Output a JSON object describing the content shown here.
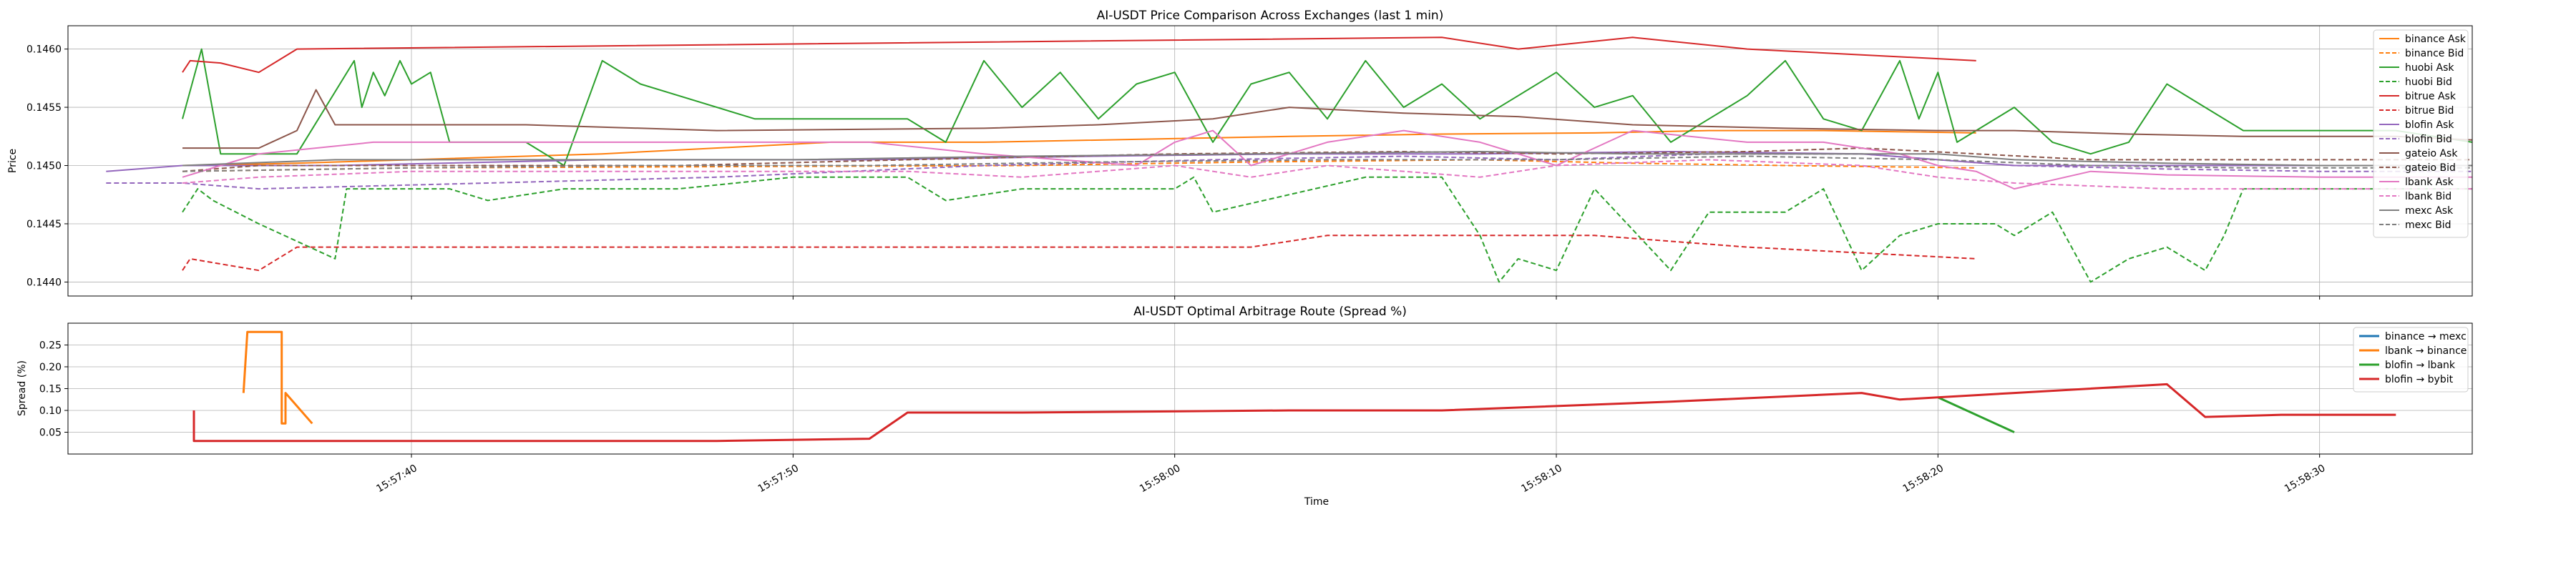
{
  "chart_data": [
    {
      "type": "line",
      "title": "AI-USDT Price Comparison Across Exchanges (last 1 min)",
      "xlabel": "",
      "ylabel": "Price",
      "ylim": [
        0.14388,
        0.1462
      ],
      "xlim": [
        "15:57:31",
        "15:58:34"
      ],
      "y_ticks": [
        "0.1440",
        "0.1445",
        "0.1450",
        "0.1455",
        "0.1460"
      ],
      "grid": true,
      "legend_position": "top-right",
      "series": [
        {
          "name": "binance Ask",
          "color": "#ff7f0e",
          "dash": "solid",
          "x": [
            "15:57:34",
            "15:57:37",
            "15:57:45",
            "15:57:51",
            "15:57:55",
            "15:58:03",
            "15:58:07",
            "15:58:11",
            "15:58:14",
            "15:58:17",
            "15:58:21"
          ],
          "y": [
            0.145,
            0.14502,
            0.1451,
            0.1452,
            0.1452,
            0.14525,
            0.14527,
            0.14528,
            0.1453,
            0.1453,
            0.14528
          ]
        },
        {
          "name": "binance Bid",
          "color": "#ff7f0e",
          "dash": "dashed",
          "x": [
            "15:57:34",
            "15:57:40",
            "15:57:48",
            "15:57:56",
            "15:58:02",
            "15:58:08",
            "15:58:12",
            "15:58:16",
            "15:58:21"
          ],
          "y": [
            0.14495,
            0.14498,
            0.14499,
            0.145,
            0.14503,
            0.14505,
            0.14502,
            0.145,
            0.14498
          ]
        },
        {
          "name": "huobi Ask",
          "color": "#2ca02c",
          "dash": "solid",
          "x": [
            "15:57:34",
            "15:57:34.5",
            "15:57:35",
            "15:57:37",
            "15:57:38.5",
            "15:57:38.7",
            "15:57:39",
            "15:57:39.3",
            "15:57:39.7",
            "15:57:40",
            "15:57:40.5",
            "15:57:41",
            "15:57:43",
            "15:57:44",
            "15:57:45",
            "15:57:46",
            "15:57:49",
            "15:57:50",
            "15:57:53",
            "15:57:54",
            "15:57:55",
            "15:57:56",
            "15:57:57",
            "15:57:58",
            "15:57:59",
            "15:58:00",
            "15:58:01",
            "15:58:02",
            "15:58:03",
            "15:58:04",
            "15:58:05",
            "15:58:06",
            "15:58:07",
            "15:58:08",
            "15:58:09",
            "15:58:10",
            "15:58:11",
            "15:58:12",
            "15:58:13",
            "15:58:14",
            "15:58:15",
            "15:58:16",
            "15:58:17",
            "15:58:18",
            "15:58:19",
            "15:58:19.5",
            "15:58:20",
            "15:58:20.5",
            "15:58:21",
            "15:58:22",
            "15:58:23",
            "15:58:24",
            "15:58:25",
            "15:58:26",
            "15:58:27",
            "15:58:28",
            "15:58:30",
            "15:58:32",
            "15:58:34"
          ],
          "y": [
            0.1454,
            0.146,
            0.1451,
            0.1451,
            0.1459,
            0.1455,
            0.1458,
            0.1456,
            0.1459,
            0.1457,
            0.1458,
            0.1452,
            0.1452,
            0.145,
            0.1459,
            0.1457,
            0.1454,
            0.1454,
            0.1454,
            0.1452,
            0.1459,
            0.1455,
            0.1458,
            0.1454,
            0.1457,
            0.1458,
            0.1452,
            0.1457,
            0.1458,
            0.1454,
            0.1459,
            0.1455,
            0.1457,
            0.1454,
            0.1456,
            0.1458,
            0.1455,
            0.1456,
            0.1452,
            0.1454,
            0.1456,
            0.1459,
            0.1454,
            0.1453,
            0.1459,
            0.1454,
            0.1458,
            0.1452,
            0.1453,
            0.1455,
            0.1452,
            0.1451,
            0.1452,
            0.1457,
            0.1455,
            0.1453,
            0.1453,
            0.1453,
            0.1452
          ]
        },
        {
          "name": "huobi Bid",
          "color": "#2ca02c",
          "dash": "dashed",
          "x": [
            "15:57:34",
            "15:57:34.4",
            "15:57:34.8",
            "15:57:36",
            "15:57:38",
            "15:57:38.3",
            "15:57:41",
            "15:57:42",
            "15:57:44",
            "15:57:47",
            "15:57:50",
            "15:57:53",
            "15:57:54",
            "15:57:56",
            "15:58:00",
            "15:58:00.5",
            "15:58:01",
            "15:58:05",
            "15:58:07",
            "15:58:08",
            "15:58:08.5",
            "15:58:09",
            "15:58:10",
            "15:58:11",
            "15:58:13",
            "15:58:14",
            "15:58:15",
            "15:58:16",
            "15:58:17",
            "15:58:18",
            "15:58:19",
            "15:58:20",
            "15:58:21",
            "15:58:21.5",
            "15:58:22",
            "15:58:23",
            "15:58:24",
            "15:58:25",
            "15:58:26",
            "15:58:27",
            "15:58:27.5",
            "15:58:28",
            "15:58:30",
            "15:58:34"
          ],
          "y": [
            0.1446,
            0.1448,
            0.1447,
            0.1445,
            0.1442,
            0.1448,
            0.1448,
            0.1447,
            0.1448,
            0.1448,
            0.1449,
            0.1449,
            0.1447,
            0.1448,
            0.1448,
            0.1449,
            0.1446,
            0.1449,
            0.1449,
            0.1444,
            0.144,
            0.1442,
            0.1441,
            0.1448,
            0.1441,
            0.1446,
            0.1446,
            0.1446,
            0.1448,
            0.1441,
            0.1444,
            0.1445,
            0.1445,
            0.1445,
            0.1444,
            0.1446,
            0.144,
            0.1442,
            0.1443,
            0.1441,
            0.1444,
            0.1448,
            0.1448,
            0.1448
          ]
        },
        {
          "name": "bitrue Ask",
          "color": "#d62728",
          "dash": "solid",
          "x": [
            "15:57:34",
            "15:57:34.2",
            "15:57:35",
            "15:57:36",
            "15:57:37",
            "15:58:07",
            "15:58:09",
            "15:58:12",
            "15:58:15",
            "15:58:18",
            "15:58:21"
          ],
          "y": [
            0.1458,
            0.1459,
            0.14588,
            0.1458,
            0.146,
            0.1461,
            0.146,
            0.1461,
            0.146,
            0.14595,
            0.1459
          ]
        },
        {
          "name": "bitrue Bid",
          "color": "#d62728",
          "dash": "dashed",
          "x": [
            "15:57:34",
            "15:57:34.2",
            "15:57:36",
            "15:57:37",
            "15:58:02",
            "15:58:04",
            "15:58:08",
            "15:58:11",
            "15:58:15",
            "15:58:21"
          ],
          "y": [
            0.1441,
            0.1442,
            0.1441,
            0.1443,
            0.1443,
            0.1444,
            0.1444,
            0.1444,
            0.1443,
            0.1442
          ]
        },
        {
          "name": "blofin Ask",
          "color": "#9467bd",
          "dash": "solid",
          "x": [
            "15:57:32",
            "15:57:34",
            "15:57:38",
            "15:57:45",
            "15:57:52",
            "15:57:58",
            "15:58:03",
            "15:58:08",
            "15:58:13",
            "15:58:18",
            "15:58:22",
            "15:58:26",
            "15:58:30",
            "15:58:34"
          ],
          "y": [
            0.14495,
            0.145,
            0.145,
            0.14505,
            0.14505,
            0.14508,
            0.1451,
            0.1451,
            0.14512,
            0.1451,
            0.145,
            0.145,
            0.145,
            0.145
          ]
        },
        {
          "name": "blofin Bid",
          "color": "#9467bd",
          "dash": "dashed",
          "x": [
            "15:57:32",
            "15:57:34",
            "15:57:36",
            "15:57:42",
            "15:57:48",
            "15:57:55",
            "15:58:01",
            "15:58:06",
            "15:58:10",
            "15:58:14",
            "15:58:18",
            "15:58:22",
            "15:58:26",
            "15:58:30",
            "15:58:34"
          ],
          "y": [
            0.14485,
            0.14485,
            0.1448,
            0.14485,
            0.1449,
            0.145,
            0.14505,
            0.14508,
            0.14505,
            0.1451,
            0.1451,
            0.145,
            0.14497,
            0.14495,
            0.14495
          ]
        },
        {
          "name": "gateio Ask",
          "color": "#8c564b",
          "dash": "solid",
          "x": [
            "15:57:34",
            "15:57:36",
            "15:57:37",
            "15:57:37.5",
            "15:57:38",
            "15:57:43",
            "15:57:48",
            "15:57:55",
            "15:57:58",
            "15:58:01",
            "15:58:03",
            "15:58:06",
            "15:58:09",
            "15:58:12",
            "15:58:16",
            "15:58:20",
            "15:58:22",
            "15:58:25",
            "15:58:28",
            "15:58:30",
            "15:58:32",
            "15:58:34"
          ],
          "y": [
            0.14515,
            0.14515,
            0.1453,
            0.14565,
            0.14535,
            0.14535,
            0.1453,
            0.14532,
            0.14535,
            0.1454,
            0.1455,
            0.14545,
            0.14542,
            0.14535,
            0.14532,
            0.1453,
            0.1453,
            0.14527,
            0.14525,
            0.14525,
            0.14525,
            0.14522
          ]
        },
        {
          "name": "gateio Bid",
          "color": "#8c564b",
          "dash": "dashed",
          "x": [
            "15:57:34",
            "15:57:36",
            "15:57:40",
            "15:57:47",
            "15:57:53",
            "15:58:00",
            "15:58:06",
            "15:58:10",
            "15:58:15",
            "15:58:18",
            "15:58:21",
            "15:58:24",
            "15:58:28",
            "15:58:32",
            "15:58:34"
          ],
          "y": [
            0.14495,
            0.145,
            0.145,
            0.145,
            0.14505,
            0.1451,
            0.14512,
            0.1451,
            0.14512,
            0.14515,
            0.1451,
            0.14505,
            0.14505,
            0.14505,
            0.14505
          ]
        },
        {
          "name": "lbank Ask",
          "color": "#e377c2",
          "dash": "solid",
          "x": [
            "15:57:34",
            "15:57:35",
            "15:57:36",
            "15:57:39",
            "15:57:45",
            "15:57:52",
            "15:57:55",
            "15:57:59",
            "15:58:00",
            "15:58:01",
            "15:58:02",
            "15:58:04",
            "15:58:06",
            "15:58:08",
            "15:58:10",
            "15:58:12",
            "15:58:15",
            "15:58:17",
            "15:58:19",
            "15:58:20",
            "15:58:21",
            "15:58:22",
            "15:58:24",
            "15:58:26",
            "15:58:30",
            "15:58:34"
          ],
          "y": [
            0.1449,
            0.145,
            0.1451,
            0.1452,
            0.1452,
            0.1452,
            0.1451,
            0.145,
            0.1452,
            0.1453,
            0.145,
            0.1452,
            0.1453,
            0.1452,
            0.145,
            0.1453,
            0.1452,
            0.1452,
            0.1451,
            0.145,
            0.14495,
            0.1448,
            0.14495,
            0.14492,
            0.1449,
            0.1449
          ]
        },
        {
          "name": "lbank Bid",
          "color": "#e377c2",
          "dash": "dashed",
          "x": [
            "15:57:34",
            "15:57:36",
            "15:57:40",
            "15:57:46",
            "15:57:53",
            "15:57:56",
            "15:58:00",
            "15:58:02",
            "15:58:04",
            "15:58:08",
            "15:58:10",
            "15:58:14",
            "15:58:18",
            "15:58:20",
            "15:58:22",
            "15:58:26",
            "15:58:30",
            "15:58:34"
          ],
          "y": [
            0.14485,
            0.1449,
            0.14495,
            0.14495,
            0.14495,
            0.1449,
            0.145,
            0.1449,
            0.145,
            0.1449,
            0.145,
            0.14505,
            0.145,
            0.1449,
            0.14485,
            0.1448,
            0.1448,
            0.1448
          ]
        },
        {
          "name": "mexc Ask",
          "color": "#7f7f7f",
          "dash": "solid",
          "x": [
            "15:57:34",
            "15:57:38",
            "15:57:44",
            "15:57:50",
            "15:57:56",
            "15:58:02",
            "15:58:08",
            "15:58:12",
            "15:58:16",
            "15:58:20",
            "15:58:22",
            "15:58:26",
            "15:58:30",
            "15:58:34"
          ],
          "y": [
            0.145,
            0.14505,
            0.14505,
            0.14505,
            0.14508,
            0.1451,
            0.14512,
            0.1451,
            0.1451,
            0.1451,
            0.14505,
            0.14502,
            0.145,
            0.145
          ]
        },
        {
          "name": "mexc Bid",
          "color": "#7f7f7f",
          "dash": "dashed",
          "x": [
            "15:57:34",
            "15:57:40",
            "15:57:46",
            "15:57:52",
            "15:57:58",
            "15:58:04",
            "15:58:10",
            "15:58:15",
            "15:58:20",
            "15:58:24",
            "15:58:28",
            "15:58:32",
            "15:58:34"
          ],
          "y": [
            0.14495,
            0.14498,
            0.145,
            0.145,
            0.14503,
            0.14505,
            0.14505,
            0.14508,
            0.14505,
            0.145,
            0.14498,
            0.14498,
            0.14498
          ]
        }
      ]
    },
    {
      "type": "line",
      "title": "AI-USDT Optimal Arbitrage Route (Spread %)",
      "xlabel": "Time",
      "ylabel": "Spread (%)",
      "ylim": [
        0.0,
        0.3
      ],
      "xlim": [
        "15:57:31",
        "15:58:34"
      ],
      "y_ticks": [
        "0.05",
        "0.10",
        "0.15",
        "0.20",
        "0.25"
      ],
      "x_ticks": [
        "15:57:40",
        "15:57:50",
        "15:58:00",
        "15:58:10",
        "15:58:20",
        "15:58:30"
      ],
      "grid": true,
      "legend_position": "top-right",
      "series": [
        {
          "name": "binance → mexc",
          "color": "#1f77b4",
          "x": [],
          "y": []
        },
        {
          "name": "lbank → binance",
          "color": "#ff7f0e",
          "x": [
            "15:57:35.6",
            "15:57:35.7",
            "15:57:36.6",
            "15:57:36.6",
            "15:57:36.7",
            "15:57:36.7",
            "15:57:37.4"
          ],
          "y": [
            0.14,
            0.28,
            0.28,
            0.07,
            0.07,
            0.14,
            0.07
          ]
        },
        {
          "name": "blofin → lbank",
          "color": "#2ca02c",
          "x": [
            "15:58:20",
            "15:58:22"
          ],
          "y": [
            0.13,
            0.05
          ]
        },
        {
          "name": "blofin → bybit",
          "color": "#d62728",
          "x": [
            "15:57:34.3",
            "15:57:34.3",
            "15:57:48",
            "15:57:52",
            "15:57:53",
            "15:57:56",
            "15:58:03",
            "15:58:07",
            "15:58:13",
            "15:58:18",
            "15:58:19",
            "15:58:22",
            "15:58:26",
            "15:58:27",
            "15:58:29",
            "15:58:32"
          ],
          "y": [
            0.1,
            0.03,
            0.03,
            0.035,
            0.095,
            0.095,
            0.1,
            0.1,
            0.12,
            0.14,
            0.125,
            0.14,
            0.16,
            0.085,
            0.09,
            0.09
          ]
        }
      ]
    }
  ]
}
